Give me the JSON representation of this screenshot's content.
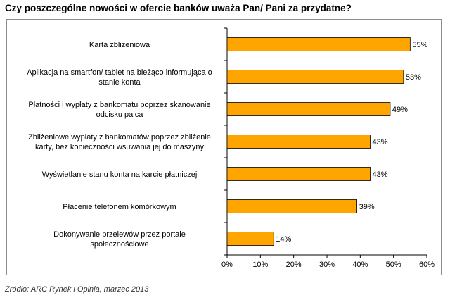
{
  "title": "Czy poszczególne nowości w ofercie banków uważa Pan/ Pani za przydatne?",
  "source": "Źródło: ARC Rynek i Opinia, marzec 2013",
  "colors": {
    "bar": "#FFA500",
    "bar_border": "#000000",
    "axis": "#000000"
  },
  "chart_data": {
    "type": "bar",
    "orientation": "horizontal",
    "categories": [
      [
        "Karta zbliżeniowa"
      ],
      [
        "Aplikacja na smartfon/ tablet na bieżąco informująca o",
        "stanie konta"
      ],
      [
        "Płatności i wypłaty z bankomatu poprzez skanowanie",
        "odcisku palca"
      ],
      [
        "Zbliżeniowe wypłaty z bankomatów poprzez zbliżenie",
        "karty, bez konieczności wsuwania jej do maszyny"
      ],
      [
        "Wyświetlanie stanu konta na karcie płatniczej"
      ],
      [
        "Płacenie telefonem komórkowym"
      ],
      [
        "Dokonywanie przelewów przez portale",
        "społecznościowe"
      ]
    ],
    "values": [
      55,
      53,
      49,
      43,
      43,
      39,
      14
    ],
    "value_labels": [
      "55%",
      "53%",
      "49%",
      "43%",
      "43%",
      "39%",
      "14%"
    ],
    "xlim": [
      0,
      60
    ],
    "xticks": [
      0,
      10,
      20,
      30,
      40,
      50,
      60
    ],
    "xtick_labels": [
      "0%",
      "10%",
      "20%",
      "30%",
      "40%",
      "50%",
      "60%"
    ],
    "grid": false
  }
}
